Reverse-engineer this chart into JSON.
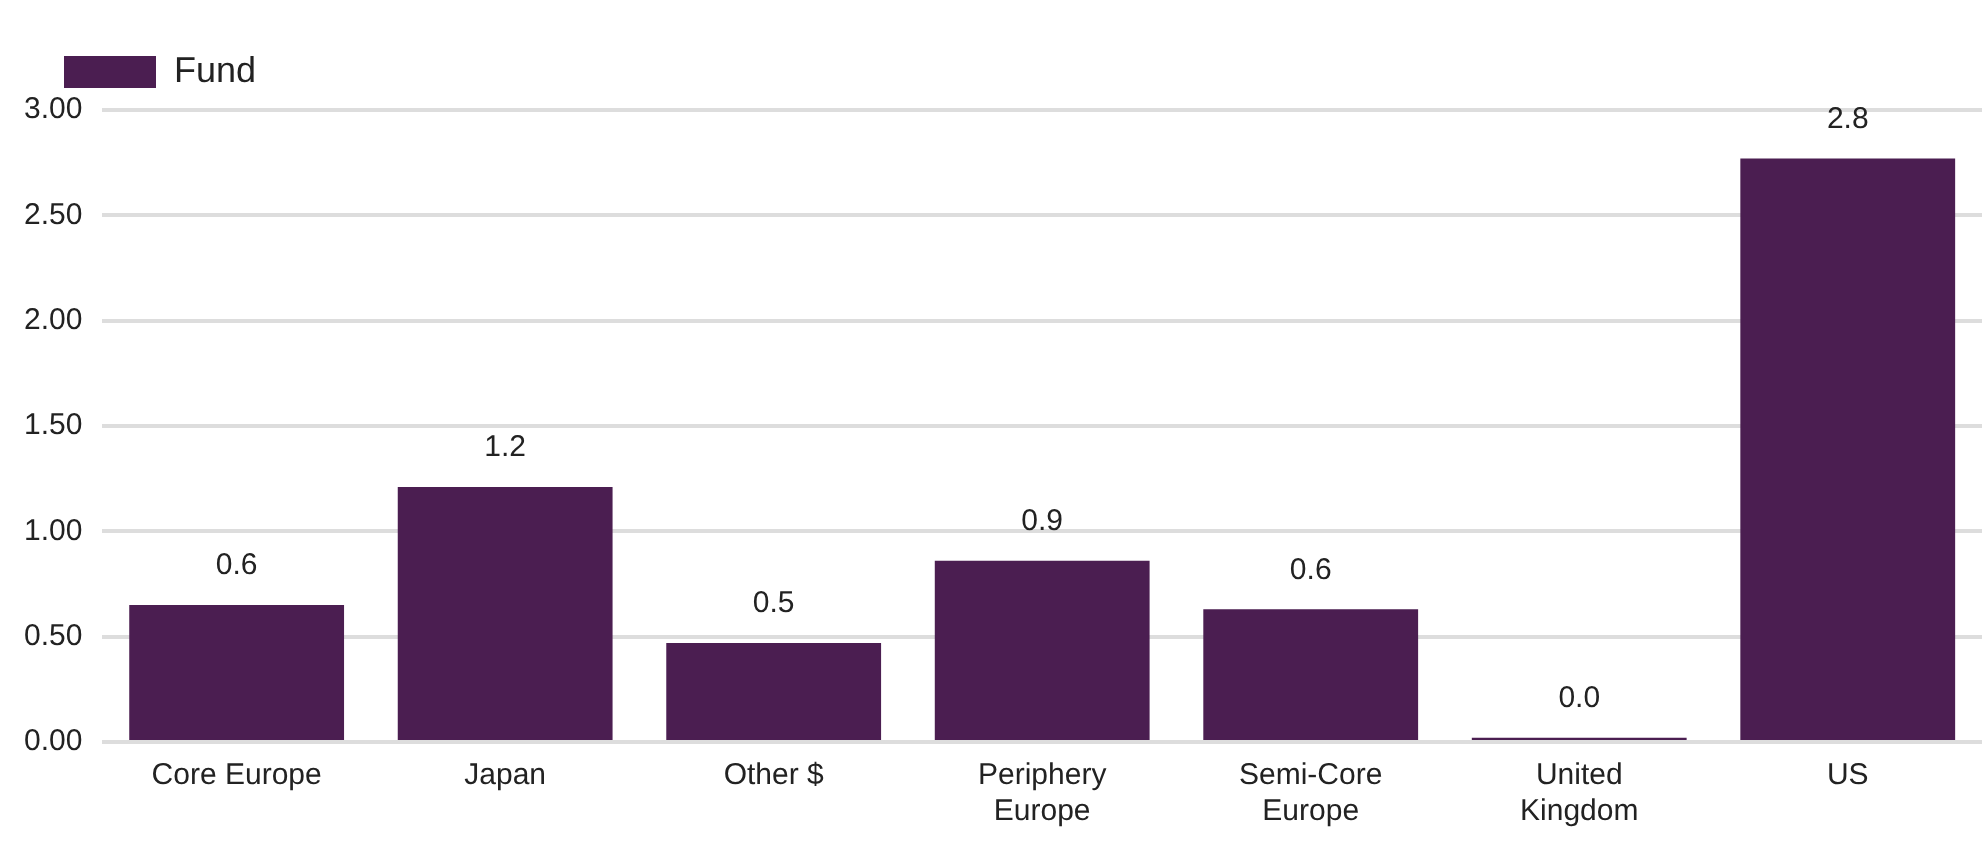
{
  "chart_data": {
    "type": "bar",
    "categories": [
      "Core Europe",
      "Japan",
      "Other $",
      "Periphery Europe",
      "Semi-Core Europe",
      "United Kingdom",
      "US"
    ],
    "series": [
      {
        "name": "Fund",
        "color": "#4b1e51",
        "values": [
          0.65,
          1.21,
          0.47,
          0.86,
          0.63,
          0.02,
          2.77
        ],
        "value_labels": [
          "0.6",
          "1.2",
          "0.5",
          "0.9",
          "0.6",
          "0.0",
          "2.8"
        ]
      }
    ],
    "ylim": [
      0,
      3
    ],
    "yticks": [
      {
        "value": 0,
        "label": "0.00"
      },
      {
        "value": 0.5,
        "label": "0.50"
      },
      {
        "value": 1,
        "label": "1.00"
      },
      {
        "value": 1.5,
        "label": "1.50"
      },
      {
        "value": 2,
        "label": "2.00"
      },
      {
        "value": 2.5,
        "label": "2.50"
      },
      {
        "value": 3,
        "label": "3.00"
      }
    ],
    "grid": "y",
    "legend": "top left"
  }
}
